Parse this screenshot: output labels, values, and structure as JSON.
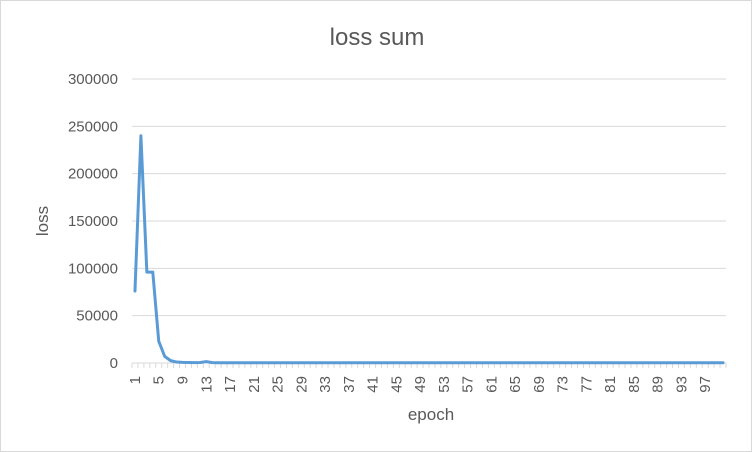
{
  "chart_data": {
    "type": "line",
    "title": "loss sum",
    "xlabel": "epoch",
    "ylabel": "loss",
    "ylim": [
      0,
      300000
    ],
    "y_ticks": [
      0,
      50000,
      100000,
      150000,
      200000,
      250000,
      300000
    ],
    "x_tick_labels": [
      "1",
      "5",
      "9",
      "13",
      "17",
      "21",
      "25",
      "29",
      "33",
      "37",
      "41",
      "45",
      "49",
      "53",
      "57",
      "61",
      "65",
      "69",
      "73",
      "77",
      "81",
      "85",
      "89",
      "93",
      "97"
    ],
    "grid": true,
    "legend": "none",
    "series": [
      {
        "color": "#5b9bd5",
        "x": [
          1,
          2,
          3,
          4,
          5,
          6,
          7,
          8,
          9,
          10,
          11,
          12,
          13,
          14,
          15,
          16,
          17,
          18,
          19,
          20,
          21,
          22,
          23,
          24,
          25,
          26,
          27,
          28,
          29,
          30,
          31,
          32,
          33,
          34,
          35,
          36,
          37,
          38,
          39,
          40,
          41,
          42,
          43,
          44,
          45,
          46,
          47,
          48,
          49,
          50,
          51,
          52,
          53,
          54,
          55,
          56,
          57,
          58,
          59,
          60,
          61,
          62,
          63,
          64,
          65,
          66,
          67,
          68,
          69,
          70,
          71,
          72,
          73,
          74,
          75,
          76,
          77,
          78,
          79,
          80,
          81,
          82,
          83,
          84,
          85,
          86,
          87,
          88,
          89,
          90,
          91,
          92,
          93,
          94,
          95,
          96,
          97,
          98,
          99,
          100
        ],
        "values": [
          76000,
          240000,
          96000,
          96000,
          23000,
          7000,
          2500,
          1000,
          600,
          500,
          400,
          500,
          1500,
          400,
          300,
          300,
          300,
          300,
          300,
          300,
          300,
          300,
          300,
          300,
          300,
          300,
          300,
          300,
          300,
          300,
          300,
          300,
          300,
          300,
          300,
          300,
          300,
          300,
          300,
          300,
          300,
          300,
          300,
          300,
          300,
          300,
          300,
          300,
          300,
          300,
          300,
          300,
          300,
          300,
          300,
          300,
          300,
          300,
          300,
          300,
          300,
          300,
          300,
          300,
          300,
          300,
          300,
          300,
          300,
          300,
          300,
          300,
          300,
          300,
          300,
          300,
          300,
          300,
          300,
          300,
          300,
          300,
          300,
          300,
          300,
          300,
          300,
          300,
          300,
          300,
          300,
          300,
          300,
          300,
          300,
          300,
          300,
          300,
          300,
          300
        ]
      }
    ]
  }
}
